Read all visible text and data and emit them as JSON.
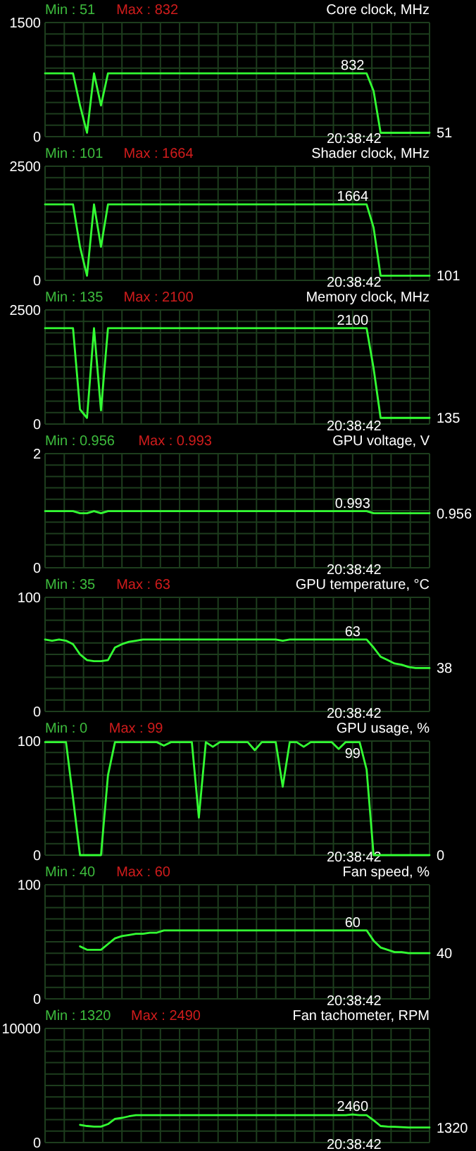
{
  "chart_data": [
    {
      "type": "line",
      "title": "Core clock, MHz",
      "annotations": [
        "Min : 51",
        "Max : 832"
      ],
      "xlabel": "20:38:42",
      "categories": [
        null,
        null,
        null,
        null,
        null,
        null,
        null,
        null,
        null,
        null,
        null,
        null,
        null,
        null,
        null,
        null,
        null,
        null,
        null,
        null,
        null,
        null,
        null,
        null,
        null,
        null,
        null,
        null,
        null,
        null,
        null,
        null,
        null,
        null,
        null,
        null,
        null,
        null,
        null,
        null,
        null,
        null,
        null,
        null,
        null,
        null,
        null,
        null,
        null,
        null,
        null,
        null,
        null,
        null,
        null,
        null
      ],
      "ylim": [
        0,
        1500
      ],
      "yticks": [
        0,
        1500
      ],
      "grid": true,
      "series": [
        {
          "color": "#33ff33",
          "values": [
            832,
            832,
            832,
            832,
            832,
            410,
            51,
            832,
            410,
            832,
            832,
            832,
            832,
            832,
            832,
            832,
            832,
            832,
            832,
            832,
            832,
            832,
            832,
            832,
            832,
            832,
            832,
            832,
            832,
            832,
            832,
            832,
            832,
            832,
            832,
            832,
            832,
            832,
            832,
            832,
            832,
            832,
            832,
            832,
            832,
            832,
            832,
            600,
            51,
            51,
            51,
            51,
            51,
            51,
            51,
            51
          ],
          "value_labels": [
            null,
            null,
            null,
            null,
            null,
            null,
            null,
            null,
            null,
            null,
            null,
            null,
            null,
            null,
            null,
            null,
            null,
            null,
            null,
            null,
            null,
            null,
            null,
            null,
            null,
            null,
            null,
            null,
            null,
            null,
            null,
            null,
            null,
            null,
            null,
            null,
            null,
            null,
            null,
            null,
            null,
            null,
            null,
            null,
            "832",
            null,
            null,
            null,
            null,
            null,
            null,
            null,
            null,
            null,
            null,
            "51"
          ]
        }
      ]
    },
    {
      "type": "line",
      "title": "Shader clock, MHz",
      "annotations": [
        "Min : 101",
        "Max : 1664"
      ],
      "xlabel": "20:38:42",
      "categories": [
        null,
        null,
        null,
        null,
        null,
        null,
        null,
        null,
        null,
        null,
        null,
        null,
        null,
        null,
        null,
        null,
        null,
        null,
        null,
        null,
        null,
        null,
        null,
        null,
        null,
        null,
        null,
        null,
        null,
        null,
        null,
        null,
        null,
        null,
        null,
        null,
        null,
        null,
        null,
        null,
        null,
        null,
        null,
        null,
        null,
        null,
        null,
        null,
        null,
        null,
        null,
        null,
        null,
        null,
        null,
        null
      ],
      "ylim": [
        0,
        2500
      ],
      "yticks": [
        0,
        2500
      ],
      "grid": true,
      "series": [
        {
          "color": "#33ff33",
          "values": [
            1664,
            1664,
            1664,
            1664,
            1664,
            735,
            101,
            1664,
            735,
            1664,
            1664,
            1664,
            1664,
            1664,
            1664,
            1664,
            1664,
            1664,
            1664,
            1664,
            1664,
            1664,
            1664,
            1664,
            1664,
            1664,
            1664,
            1664,
            1664,
            1664,
            1664,
            1664,
            1664,
            1664,
            1664,
            1664,
            1664,
            1664,
            1664,
            1664,
            1664,
            1664,
            1664,
            1664,
            1664,
            1664,
            1664,
            1155,
            101,
            101,
            101,
            101,
            101,
            101,
            101,
            101
          ],
          "value_labels": [
            null,
            null,
            null,
            null,
            null,
            null,
            null,
            null,
            null,
            null,
            null,
            null,
            null,
            null,
            null,
            null,
            null,
            null,
            null,
            null,
            null,
            null,
            null,
            null,
            null,
            null,
            null,
            null,
            null,
            null,
            null,
            null,
            null,
            null,
            null,
            null,
            null,
            null,
            null,
            null,
            null,
            null,
            null,
            null,
            "1664",
            null,
            null,
            null,
            null,
            null,
            null,
            null,
            null,
            null,
            null,
            "101"
          ]
        }
      ]
    },
    {
      "type": "line",
      "title": "Memory clock, MHz",
      "annotations": [
        "Min : 135",
        "Max : 2100"
      ],
      "xlabel": "20:38:42",
      "categories": [
        null,
        null,
        null,
        null,
        null,
        null,
        null,
        null,
        null,
        null,
        null,
        null,
        null,
        null,
        null,
        null,
        null,
        null,
        null,
        null,
        null,
        null,
        null,
        null,
        null,
        null,
        null,
        null,
        null,
        null,
        null,
        null,
        null,
        null,
        null,
        null,
        null,
        null,
        null,
        null,
        null,
        null,
        null,
        null,
        null,
        null,
        null,
        null,
        null,
        null,
        null,
        null,
        null,
        null,
        null,
        null
      ],
      "ylim": [
        0,
        2500
      ],
      "yticks": [
        0,
        2500
      ],
      "grid": true,
      "series": [
        {
          "color": "#33ff33",
          "values": [
            2100,
            2100,
            2100,
            2100,
            2100,
            320,
            135,
            2100,
            300,
            2100,
            2100,
            2100,
            2100,
            2100,
            2100,
            2100,
            2100,
            2100,
            2100,
            2100,
            2100,
            2100,
            2100,
            2100,
            2100,
            2100,
            2100,
            2100,
            2100,
            2100,
            2100,
            2100,
            2100,
            2100,
            2100,
            2100,
            2100,
            2100,
            2100,
            2100,
            2100,
            2100,
            2100,
            2100,
            2100,
            2100,
            2100,
            1220,
            135,
            135,
            135,
            135,
            135,
            135,
            135,
            135
          ],
          "value_labels": [
            null,
            null,
            null,
            null,
            null,
            null,
            null,
            null,
            null,
            null,
            null,
            null,
            null,
            null,
            null,
            null,
            null,
            null,
            null,
            null,
            null,
            null,
            null,
            null,
            null,
            null,
            null,
            null,
            null,
            null,
            null,
            null,
            null,
            null,
            null,
            null,
            null,
            null,
            null,
            null,
            null,
            null,
            null,
            null,
            "2100",
            null,
            null,
            null,
            null,
            null,
            null,
            null,
            null,
            null,
            null,
            "135"
          ]
        }
      ]
    },
    {
      "type": "line",
      "title": "GPU voltage, V",
      "annotations": [
        "Min : 0.956",
        "Max : 0.993"
      ],
      "xlabel": "20:38:42",
      "categories": [
        null,
        null,
        null,
        null,
        null,
        null,
        null,
        null,
        null,
        null,
        null,
        null,
        null,
        null,
        null,
        null,
        null,
        null,
        null,
        null,
        null,
        null,
        null,
        null,
        null,
        null,
        null,
        null,
        null,
        null,
        null,
        null,
        null,
        null,
        null,
        null,
        null,
        null,
        null,
        null,
        null,
        null,
        null,
        null,
        null,
        null,
        null,
        null,
        null,
        null,
        null,
        null,
        null,
        null,
        null,
        null
      ],
      "ylim": [
        0,
        2
      ],
      "yticks": [
        0,
        2
      ],
      "grid": true,
      "series": [
        {
          "color": "#33ff33",
          "values": [
            0.993,
            0.993,
            0.993,
            0.993,
            0.993,
            0.956,
            0.956,
            0.993,
            0.956,
            0.993,
            0.993,
            0.993,
            0.993,
            0.993,
            0.993,
            0.993,
            0.993,
            0.993,
            0.993,
            0.993,
            0.993,
            0.993,
            0.993,
            0.993,
            0.993,
            0.993,
            0.993,
            0.993,
            0.993,
            0.993,
            0.993,
            0.993,
            0.993,
            0.993,
            0.993,
            0.993,
            0.993,
            0.993,
            0.993,
            0.993,
            0.993,
            0.993,
            0.993,
            0.993,
            0.993,
            0.993,
            0.993,
            0.956,
            0.956,
            0.956,
            0.956,
            0.956,
            0.956,
            0.956,
            0.956,
            0.956
          ],
          "value_labels": [
            null,
            null,
            null,
            null,
            null,
            null,
            null,
            null,
            null,
            null,
            null,
            null,
            null,
            null,
            null,
            null,
            null,
            null,
            null,
            null,
            null,
            null,
            null,
            null,
            null,
            null,
            null,
            null,
            null,
            null,
            null,
            null,
            null,
            null,
            null,
            null,
            null,
            null,
            null,
            null,
            null,
            null,
            null,
            null,
            "0.993",
            null,
            null,
            null,
            null,
            null,
            null,
            null,
            null,
            null,
            null,
            "0.956"
          ]
        }
      ]
    },
    {
      "type": "line",
      "title": "GPU temperature, °C",
      "annotations": [
        "Min : 35",
        "Max : 63"
      ],
      "xlabel": "20:38:42",
      "categories": [
        null,
        null,
        null,
        null,
        null,
        null,
        null,
        null,
        null,
        null,
        null,
        null,
        null,
        null,
        null,
        null,
        null,
        null,
        null,
        null,
        null,
        null,
        null,
        null,
        null,
        null,
        null,
        null,
        null,
        null,
        null,
        null,
        null,
        null,
        null,
        null,
        null,
        null,
        null,
        null,
        null,
        null,
        null,
        null,
        null,
        null,
        null,
        null,
        null,
        null,
        null,
        null,
        null,
        null,
        null,
        null
      ],
      "ylim": [
        0,
        100
      ],
      "yticks": [
        0,
        100
      ],
      "grid": true,
      "series": [
        {
          "color": "#33ff33",
          "values": [
            63,
            62,
            63,
            62,
            59,
            50,
            45,
            44,
            44,
            45,
            56,
            59,
            61,
            62,
            63,
            63,
            63,
            63,
            63,
            63,
            63,
            63,
            63,
            63,
            63,
            63,
            63,
            63,
            63,
            63,
            63,
            63,
            63,
            63,
            62,
            63,
            63,
            63,
            63,
            63,
            63,
            63,
            63,
            63,
            63,
            63,
            63,
            56,
            48,
            45,
            42,
            41,
            39,
            38,
            38,
            38
          ],
          "value_labels": [
            null,
            null,
            null,
            null,
            null,
            null,
            null,
            null,
            null,
            null,
            null,
            null,
            null,
            null,
            null,
            null,
            null,
            null,
            null,
            null,
            null,
            null,
            null,
            null,
            null,
            null,
            null,
            null,
            null,
            null,
            null,
            null,
            null,
            null,
            null,
            null,
            null,
            null,
            null,
            null,
            null,
            null,
            null,
            null,
            "63",
            null,
            null,
            null,
            null,
            null,
            null,
            null,
            null,
            null,
            null,
            "38"
          ]
        }
      ]
    },
    {
      "type": "line",
      "title": "GPU usage, %",
      "annotations": [
        "Min : 0",
        "Max : 99"
      ],
      "xlabel": "20:38:42",
      "categories": [
        null,
        null,
        null,
        null,
        null,
        null,
        null,
        null,
        null,
        null,
        null,
        null,
        null,
        null,
        null,
        null,
        null,
        null,
        null,
        null,
        null,
        null,
        null,
        null,
        null,
        null,
        null,
        null,
        null,
        null,
        null,
        null,
        null,
        null,
        null,
        null,
        null,
        null,
        null,
        null,
        null,
        null,
        null,
        null,
        null,
        null,
        null,
        null,
        null,
        null,
        null,
        null,
        null,
        null,
        null,
        null
      ],
      "ylim": [
        0,
        100
      ],
      "yticks": [
        0,
        100
      ],
      "grid": true,
      "series": [
        {
          "color": "#33ff33",
          "values": [
            99,
            99,
            99,
            99,
            50,
            0,
            0,
            0,
            0,
            70,
            99,
            99,
            99,
            99,
            99,
            99,
            99,
            96,
            99,
            99,
            99,
            99,
            33,
            99,
            95,
            99,
            99,
            99,
            99,
            99,
            92,
            99,
            99,
            99,
            60,
            99,
            99,
            95,
            99,
            99,
            99,
            99,
            93,
            99,
            99,
            99,
            75,
            0,
            0,
            0,
            0,
            0,
            0,
            0,
            0,
            0
          ],
          "value_labels": [
            null,
            null,
            null,
            null,
            null,
            null,
            null,
            null,
            null,
            null,
            null,
            null,
            null,
            null,
            null,
            null,
            null,
            null,
            null,
            null,
            null,
            null,
            null,
            null,
            null,
            null,
            null,
            null,
            null,
            null,
            null,
            null,
            null,
            null,
            null,
            null,
            null,
            null,
            null,
            null,
            null,
            null,
            null,
            null,
            "99",
            null,
            null,
            null,
            null,
            null,
            null,
            null,
            null,
            null,
            null,
            "0"
          ]
        }
      ]
    },
    {
      "type": "line",
      "title": "Fan speed, %",
      "annotations": [
        "Min : 40",
        "Max : 60"
      ],
      "xlabel": "20:38:42",
      "categories": [
        null,
        null,
        null,
        null,
        null,
        null,
        null,
        null,
        null,
        null,
        null,
        null,
        null,
        null,
        null,
        null,
        null,
        null,
        null,
        null,
        null,
        null,
        null,
        null,
        null,
        null,
        null,
        null,
        null,
        null,
        null,
        null,
        null,
        null,
        null,
        null,
        null,
        null,
        null,
        null,
        null,
        null,
        null,
        null,
        null,
        null,
        null,
        null,
        null,
        null,
        null,
        null,
        null,
        null,
        null,
        null
      ],
      "ylim": [
        0,
        100
      ],
      "yticks": [
        0,
        100
      ],
      "grid": true,
      "series": [
        {
          "color": "#33ff33",
          "values": [
            null,
            null,
            null,
            null,
            null,
            46,
            43,
            43,
            43,
            48,
            53,
            55,
            56,
            57,
            57,
            58,
            58,
            60,
            60,
            60,
            60,
            60,
            60,
            60,
            60,
            60,
            60,
            60,
            60,
            60,
            60,
            60,
            60,
            60,
            60,
            60,
            60,
            60,
            60,
            60,
            60,
            60,
            60,
            60,
            60,
            60,
            60,
            51,
            45,
            43,
            41,
            41,
            40,
            40,
            40,
            40
          ],
          "value_labels": [
            null,
            null,
            null,
            null,
            null,
            null,
            null,
            null,
            null,
            null,
            null,
            null,
            null,
            null,
            null,
            null,
            null,
            null,
            null,
            null,
            null,
            null,
            null,
            null,
            null,
            null,
            null,
            null,
            null,
            null,
            null,
            null,
            null,
            null,
            null,
            null,
            null,
            null,
            null,
            null,
            null,
            null,
            null,
            null,
            "60",
            null,
            null,
            null,
            null,
            null,
            null,
            null,
            null,
            null,
            null,
            "40"
          ]
        }
      ]
    },
    {
      "type": "line",
      "title": "Fan tachometer, RPM",
      "annotations": [
        "Min : 1320",
        "Max : 2490"
      ],
      "xlabel": "20:38:42",
      "categories": [
        null,
        null,
        null,
        null,
        null,
        null,
        null,
        null,
        null,
        null,
        null,
        null,
        null,
        null,
        null,
        null,
        null,
        null,
        null,
        null,
        null,
        null,
        null,
        null,
        null,
        null,
        null,
        null,
        null,
        null,
        null,
        null,
        null,
        null,
        null,
        null,
        null,
        null,
        null,
        null,
        null,
        null,
        null,
        null,
        null,
        null,
        null,
        null,
        null,
        null,
        null,
        null,
        null,
        null,
        null,
        null
      ],
      "ylim": [
        0,
        10000
      ],
      "yticks": [
        0,
        10000
      ],
      "grid": true,
      "series": [
        {
          "color": "#33ff33",
          "values": [
            null,
            null,
            null,
            null,
            null,
            1550,
            1450,
            1400,
            1400,
            1620,
            2070,
            2160,
            2300,
            2400,
            2400,
            2400,
            2400,
            2400,
            2400,
            2400,
            2400,
            2400,
            2400,
            2400,
            2400,
            2400,
            2400,
            2400,
            2400,
            2400,
            2400,
            2400,
            2400,
            2400,
            2400,
            2400,
            2400,
            2400,
            2400,
            2400,
            2400,
            2400,
            2400,
            2400,
            2460,
            2400,
            2400,
            1950,
            1450,
            1400,
            1380,
            1350,
            1320,
            1320,
            1320,
            1320
          ],
          "value_labels": [
            null,
            null,
            null,
            null,
            null,
            null,
            null,
            null,
            null,
            null,
            null,
            null,
            null,
            null,
            null,
            null,
            null,
            null,
            null,
            null,
            null,
            null,
            null,
            null,
            null,
            null,
            null,
            null,
            null,
            null,
            null,
            null,
            null,
            null,
            null,
            null,
            null,
            null,
            null,
            null,
            null,
            null,
            null,
            null,
            "2460",
            null,
            null,
            null,
            null,
            null,
            null,
            null,
            null,
            null,
            null,
            "1320"
          ]
        }
      ]
    }
  ]
}
